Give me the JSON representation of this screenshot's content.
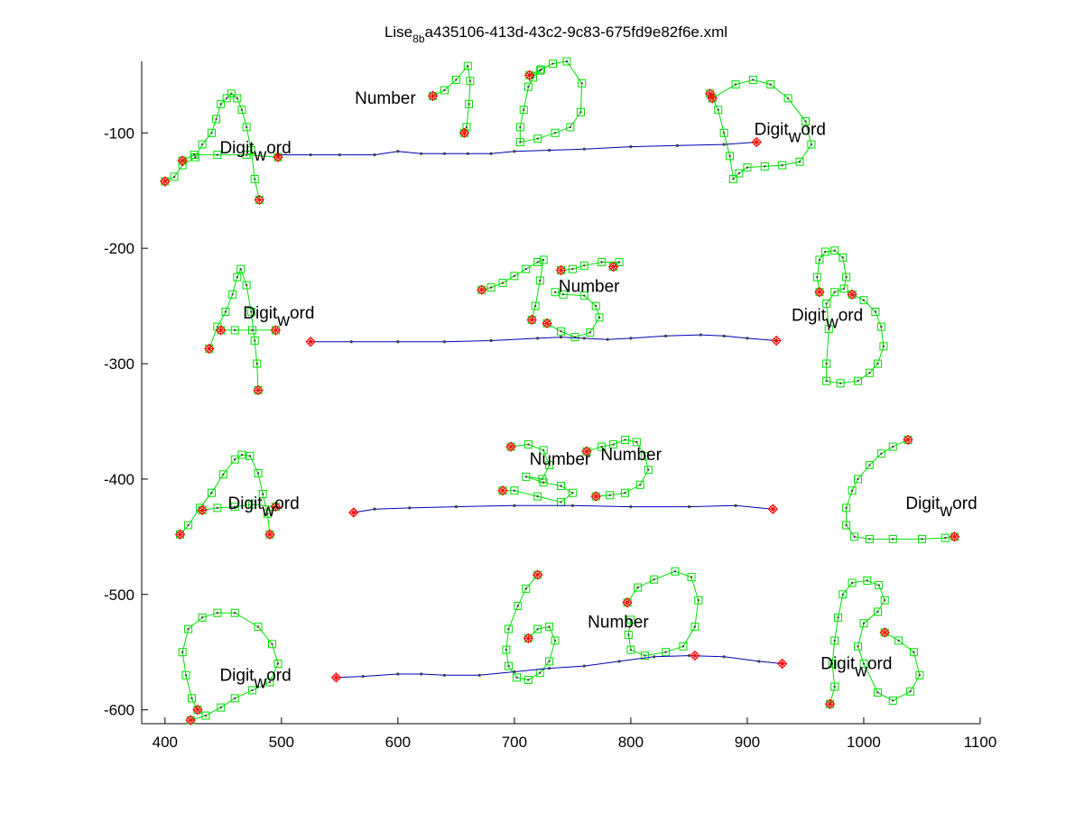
{
  "chart_data": {
    "type": "scatter",
    "title": {
      "prefix": "Lise",
      "subscript": "8b",
      "suffix": "a435106-413d-43c2-9c83-675fd9e82f6e.xml"
    },
    "xlim": [
      380,
      1100
    ],
    "ylim": [
      -612,
      -38
    ],
    "xticks": [
      400,
      500,
      600,
      700,
      800,
      900,
      1000,
      1100
    ],
    "yticks": [
      -100,
      -200,
      -300,
      -400,
      -500,
      -600
    ],
    "grid": false,
    "colors": {
      "stroke": "#00e000",
      "baseline": "#0000b4",
      "baseline_marker": "#404040",
      "endpoint": "#ff0000",
      "axis": "#000000"
    },
    "labels": [
      {
        "pre": "Digit",
        "sub": "w",
        "post": "ord",
        "x": 447,
        "y": -113
      },
      {
        "pre": "Number",
        "x": 563,
        "y": -70
      },
      {
        "pre": "Digit",
        "sub": "w",
        "post": "ord",
        "x": 906,
        "y": -97
      },
      {
        "pre": "Digit",
        "sub": "w",
        "post": "ord",
        "x": 467,
        "y": -256
      },
      {
        "pre": "Number",
        "x": 738,
        "y": -233
      },
      {
        "pre": "Digit",
        "sub": "w",
        "post": "ord",
        "x": 938,
        "y": -258
      },
      {
        "pre": "Digit",
        "sub": "w",
        "post": "ord",
        "x": 454,
        "y": -421
      },
      {
        "pre": "Number",
        "x": 713,
        "y": -383
      },
      {
        "pre": "Number",
        "x": 774,
        "y": -379
      },
      {
        "pre": "Digit",
        "sub": "w",
        "post": "ord",
        "x": 1036,
        "y": -421
      },
      {
        "pre": "Number",
        "x": 763,
        "y": -524
      },
      {
        "pre": "Digit",
        "sub": "w",
        "post": "ord",
        "x": 447,
        "y": -570
      },
      {
        "pre": "Digit",
        "sub": "w",
        "post": "ord",
        "x": 963,
        "y": -560
      }
    ],
    "baselines": [
      [
        [
          497,
          -119
        ],
        [
          525,
          -119
        ],
        [
          550,
          -119
        ],
        [
          580,
          -119
        ],
        [
          600,
          -116
        ],
        [
          620,
          -118
        ],
        [
          640,
          -118
        ],
        [
          660,
          -118
        ],
        [
          680,
          -118
        ],
        [
          700,
          -116
        ],
        [
          730,
          -115
        ],
        [
          760,
          -114
        ],
        [
          800,
          -112
        ],
        [
          840,
          -111
        ],
        [
          880,
          -110
        ],
        [
          908,
          -108
        ]
      ],
      [
        [
          525,
          -281
        ],
        [
          560,
          -281
        ],
        [
          600,
          -281
        ],
        [
          640,
          -281
        ],
        [
          680,
          -280
        ],
        [
          720,
          -278
        ],
        [
          740,
          -277
        ],
        [
          760,
          -278
        ],
        [
          780,
          -279
        ],
        [
          800,
          -278
        ],
        [
          830,
          -276
        ],
        [
          860,
          -275
        ],
        [
          880,
          -276
        ],
        [
          900,
          -278
        ],
        [
          925,
          -280
        ]
      ],
      [
        [
          562,
          -429
        ],
        [
          580,
          -426
        ],
        [
          610,
          -425
        ],
        [
          650,
          -424
        ],
        [
          700,
          -423
        ],
        [
          750,
          -423
        ],
        [
          800,
          -424
        ],
        [
          850,
          -424
        ],
        [
          890,
          -423
        ],
        [
          922,
          -426
        ]
      ],
      [
        [
          547,
          -572
        ],
        [
          570,
          -571
        ],
        [
          600,
          -569
        ],
        [
          620,
          -569
        ],
        [
          640,
          -570
        ],
        [
          670,
          -570
        ],
        [
          700,
          -567
        ],
        [
          730,
          -564
        ],
        [
          760,
          -562
        ],
        [
          790,
          -558
        ],
        [
          820,
          -554
        ],
        [
          850,
          -553
        ],
        [
          880,
          -554
        ],
        [
          910,
          -558
        ],
        [
          930,
          -560
        ]
      ]
    ],
    "strokes": [
      [
        [
          400,
          -142
        ],
        [
          408,
          -138
        ],
        [
          415,
          -128
        ],
        [
          426,
          -121
        ],
        [
          432,
          -110
        ],
        [
          440,
          -100
        ],
        [
          444,
          -88
        ],
        [
          448,
          -75
        ],
        [
          453,
          -70
        ],
        [
          457,
          -66
        ],
        [
          462,
          -70
        ],
        [
          466,
          -80
        ],
        [
          470,
          -95
        ],
        [
          474,
          -115
        ],
        [
          477,
          -140
        ],
        [
          481,
          -158
        ]
      ],
      [
        [
          415,
          -124
        ],
        [
          425,
          -119
        ],
        [
          445,
          -119
        ],
        [
          470,
          -119
        ],
        [
          497,
          -121
        ]
      ],
      [
        [
          630,
          -68
        ],
        [
          640,
          -63
        ],
        [
          650,
          -54
        ],
        [
          660,
          -42
        ],
        [
          662,
          -55
        ],
        [
          661,
          -75
        ],
        [
          659,
          -95
        ],
        [
          657,
          -100
        ]
      ],
      [
        [
          713,
          -50
        ],
        [
          723,
          -45
        ],
        [
          733,
          -40
        ],
        [
          745,
          -38
        ],
        [
          758,
          -57
        ],
        [
          757,
          -82
        ],
        [
          748,
          -95
        ],
        [
          735,
          -100
        ],
        [
          720,
          -105
        ],
        [
          705,
          -108
        ],
        [
          705,
          -95
        ],
        [
          708,
          -80
        ],
        [
          712,
          -60
        ],
        [
          716,
          -52
        ],
        [
          722,
          -46
        ]
      ],
      [
        [
          868,
          -66
        ],
        [
          875,
          -80
        ],
        [
          880,
          -100
        ],
        [
          885,
          -120
        ],
        [
          888,
          -140
        ],
        [
          893,
          -135
        ],
        [
          900,
          -130
        ],
        [
          915,
          -129
        ],
        [
          930,
          -128
        ],
        [
          945,
          -125
        ],
        [
          955,
          -110
        ],
        [
          950,
          -90
        ],
        [
          935,
          -70
        ],
        [
          920,
          -58
        ],
        [
          905,
          -54
        ],
        [
          890,
          -58
        ],
        [
          870,
          -70
        ]
      ],
      [
        [
          438,
          -287
        ],
        [
          445,
          -268
        ],
        [
          452,
          -255
        ],
        [
          458,
          -240
        ],
        [
          462,
          -225
        ],
        [
          465,
          -218
        ],
        [
          470,
          -232
        ],
        [
          474,
          -255
        ],
        [
          477,
          -280
        ],
        [
          479,
          -300
        ],
        [
          480,
          -323
        ]
      ],
      [
        [
          448,
          -271
        ],
        [
          460,
          -271
        ],
        [
          475,
          -271
        ],
        [
          495,
          -271
        ]
      ],
      [
        [
          672,
          -236
        ],
        [
          680,
          -234
        ],
        [
          690,
          -230
        ],
        [
          700,
          -224
        ],
        [
          710,
          -218
        ],
        [
          720,
          -212
        ],
        [
          725,
          -210
        ],
        [
          722,
          -228
        ],
        [
          718,
          -250
        ],
        [
          715,
          -262
        ]
      ],
      [
        [
          740,
          -219
        ],
        [
          750,
          -218
        ],
        [
          760,
          -215
        ],
        [
          775,
          -212
        ],
        [
          790,
          -212
        ],
        [
          785,
          -216
        ]
      ],
      [
        [
          728,
          -265
        ],
        [
          740,
          -272
        ],
        [
          752,
          -277
        ],
        [
          765,
          -273
        ],
        [
          773,
          -260
        ],
        [
          770,
          -250
        ],
        [
          760,
          -241
        ],
        [
          742,
          -240
        ],
        [
          735,
          -238
        ]
      ],
      [
        [
          962,
          -238
        ],
        [
          960,
          -225
        ],
        [
          962,
          -210
        ],
        [
          967,
          -203
        ],
        [
          975,
          -202
        ],
        [
          982,
          -208
        ],
        [
          985,
          -225
        ],
        [
          983,
          -235
        ],
        [
          975,
          -238
        ],
        [
          968,
          -248
        ],
        [
          970,
          -270
        ],
        [
          968,
          -300
        ],
        [
          968,
          -315
        ],
        [
          980,
          -317
        ],
        [
          995,
          -315
        ],
        [
          1005,
          -308
        ],
        [
          1012,
          -300
        ],
        [
          1017,
          -285
        ],
        [
          1015,
          -268
        ],
        [
          1010,
          -255
        ],
        [
          1000,
          -245
        ],
        [
          990,
          -240
        ]
      ],
      [
        [
          413,
          -448
        ],
        [
          420,
          -440
        ],
        [
          430,
          -425
        ],
        [
          440,
          -412
        ],
        [
          450,
          -396
        ],
        [
          460,
          -383
        ],
        [
          466,
          -379
        ],
        [
          473,
          -380
        ],
        [
          480,
          -395
        ],
        [
          484,
          -413
        ],
        [
          488,
          -430
        ],
        [
          490,
          -448
        ]
      ],
      [
        [
          432,
          -427
        ],
        [
          445,
          -425
        ],
        [
          460,
          -424
        ],
        [
          475,
          -422
        ],
        [
          495,
          -424
        ]
      ],
      [
        [
          697,
          -372
        ],
        [
          712,
          -370
        ],
        [
          725,
          -375
        ],
        [
          730,
          -388
        ],
        [
          724,
          -400
        ],
        [
          710,
          -398
        ],
        [
          725,
          -403
        ],
        [
          740,
          -406
        ],
        [
          750,
          -412
        ],
        [
          740,
          -420
        ],
        [
          720,
          -415
        ],
        [
          700,
          -410
        ],
        [
          690,
          -410
        ]
      ],
      [
        [
          762,
          -376
        ],
        [
          775,
          -372
        ],
        [
          785,
          -370
        ],
        [
          795,
          -366
        ],
        [
          805,
          -368
        ],
        [
          812,
          -380
        ],
        [
          815,
          -392
        ],
        [
          808,
          -405
        ],
        [
          795,
          -412
        ],
        [
          782,
          -414
        ],
        [
          770,
          -415
        ]
      ],
      [
        [
          1038,
          -366
        ],
        [
          1025,
          -372
        ],
        [
          1015,
          -378
        ],
        [
          1005,
          -388
        ],
        [
          995,
          -400
        ],
        [
          990,
          -410
        ],
        [
          985,
          -425
        ],
        [
          985,
          -440
        ],
        [
          992,
          -450
        ],
        [
          1005,
          -452
        ],
        [
          1025,
          -452
        ],
        [
          1050,
          -452
        ],
        [
          1070,
          -451
        ],
        [
          1078,
          -450
        ]
      ],
      [
        [
          422,
          -609
        ],
        [
          435,
          -605
        ],
        [
          448,
          -598
        ],
        [
          460,
          -590
        ],
        [
          475,
          -583
        ],
        [
          490,
          -576
        ],
        [
          497,
          -560
        ],
        [
          492,
          -543
        ],
        [
          480,
          -528
        ],
        [
          460,
          -516
        ],
        [
          445,
          -516
        ],
        [
          432,
          -520
        ],
        [
          420,
          -530
        ],
        [
          415,
          -550
        ],
        [
          418,
          -570
        ],
        [
          423,
          -590
        ],
        [
          428,
          -600
        ]
      ],
      [
        [
          720,
          -483
        ],
        [
          710,
          -495
        ],
        [
          703,
          -510
        ],
        [
          695,
          -530
        ],
        [
          693,
          -548
        ],
        [
          695,
          -562
        ],
        [
          702,
          -572
        ],
        [
          712,
          -574
        ],
        [
          722,
          -568
        ],
        [
          730,
          -558
        ],
        [
          735,
          -540
        ],
        [
          730,
          -528
        ],
        [
          720,
          -530
        ],
        [
          712,
          -538
        ]
      ],
      [
        [
          800,
          -522
        ],
        [
          798,
          -535
        ],
        [
          800,
          -548
        ],
        [
          812,
          -553
        ],
        [
          830,
          -550
        ],
        [
          845,
          -545
        ],
        [
          855,
          -528
        ],
        [
          858,
          -505
        ],
        [
          852,
          -485
        ],
        [
          838,
          -480
        ],
        [
          820,
          -487
        ],
        [
          806,
          -494
        ],
        [
          797,
          -507
        ]
      ],
      [
        [
          971,
          -595
        ],
        [
          975,
          -580
        ],
        [
          973,
          -560
        ],
        [
          975,
          -540
        ],
        [
          978,
          -520
        ],
        [
          982,
          -500
        ],
        [
          990,
          -490
        ],
        [
          1003,
          -488
        ],
        [
          1013,
          -492
        ],
        [
          1018,
          -505
        ],
        [
          1012,
          -515
        ],
        [
          1000,
          -525
        ],
        [
          995,
          -545
        ],
        [
          1000,
          -560
        ],
        [
          1012,
          -585
        ],
        [
          1025,
          -592
        ],
        [
          1040,
          -584
        ],
        [
          1048,
          -570
        ],
        [
          1043,
          -550
        ],
        [
          1030,
          -540
        ],
        [
          1018,
          -533
        ]
      ]
    ],
    "endpoints": [
      [
        400,
        -142
      ],
      [
        481,
        -158
      ],
      [
        415,
        -124
      ],
      [
        497,
        -121
      ],
      [
        630,
        -68
      ],
      [
        657,
        -100
      ],
      [
        713,
        -50
      ],
      [
        908,
        -108
      ],
      [
        868,
        -66
      ],
      [
        870,
        -70
      ],
      [
        438,
        -287
      ],
      [
        480,
        -323
      ],
      [
        448,
        -271
      ],
      [
        495,
        -271
      ],
      [
        525,
        -281
      ],
      [
        672,
        -236
      ],
      [
        715,
        -262
      ],
      [
        740,
        -219
      ],
      [
        785,
        -216
      ],
      [
        728,
        -265
      ],
      [
        925,
        -280
      ],
      [
        962,
        -238
      ],
      [
        990,
        -240
      ],
      [
        413,
        -448
      ],
      [
        490,
        -448
      ],
      [
        432,
        -427
      ],
      [
        495,
        -424
      ],
      [
        562,
        -429
      ],
      [
        697,
        -372
      ],
      [
        690,
        -410
      ],
      [
        762,
        -376
      ],
      [
        770,
        -415
      ],
      [
        922,
        -426
      ],
      [
        1038,
        -366
      ],
      [
        1078,
        -450
      ],
      [
        422,
        -609
      ],
      [
        428,
        -600
      ],
      [
        547,
        -572
      ],
      [
        720,
        -483
      ],
      [
        712,
        -538
      ],
      [
        797,
        -507
      ],
      [
        930,
        -560
      ],
      [
        971,
        -595
      ],
      [
        1018,
        -533
      ],
      [
        855,
        -553
      ]
    ]
  }
}
